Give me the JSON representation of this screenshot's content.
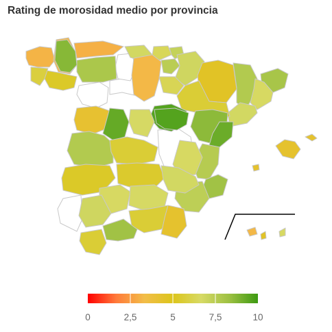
{
  "title": "Rating de morosidad medio por provincia",
  "legend": {
    "min": 0,
    "max": 10,
    "stops": [
      "#ff0000",
      "#ff7a3a",
      "#f2bd48",
      "#dcc51b",
      "#d7da65",
      "#9cc042",
      "#3d9a12"
    ],
    "ticks": [
      {
        "value": 0,
        "label": "0"
      },
      {
        "value": 2.5,
        "label": "2,5"
      },
      {
        "value": 5,
        "label": "5"
      },
      {
        "value": 7.5,
        "label": "7,5"
      },
      {
        "value": 10,
        "label": "10"
      }
    ]
  },
  "chart_data": {
    "type": "choropleth",
    "title": "Rating de morosidad medio por provincia",
    "color_range": [
      0,
      10
    ],
    "provinces": [
      {
        "id": "a-coruna",
        "rating": 3.1
      },
      {
        "id": "lugo",
        "rating": 3.2
      },
      {
        "id": "pontevedra",
        "rating": 5.3
      },
      {
        "id": "ourense",
        "rating": 5.8
      },
      {
        "id": "asturias",
        "rating": 8.7
      },
      {
        "id": "cantabria",
        "rating": 3.0
      },
      {
        "id": "bizkaia",
        "rating": 6.4
      },
      {
        "id": "gipuzkoa",
        "rating": 7.2
      },
      {
        "id": "alava",
        "rating": 7.5
      },
      {
        "id": "navarra",
        "rating": 6.9
      },
      {
        "id": "leon",
        "rating": 7.9
      },
      {
        "id": "palencia",
        "rating": 6.8
      },
      {
        "id": "burgos",
        "rating": 3.2
      },
      {
        "id": "la-rioja",
        "rating": 6.3
      },
      {
        "id": "huesca",
        "rating": 4.6
      },
      {
        "id": "zaragoza",
        "rating": 5.6
      },
      {
        "id": "teruel",
        "rating": 8.6
      },
      {
        "id": "lleida",
        "rating": 7.7
      },
      {
        "id": "barcelona",
        "rating": 6.6
      },
      {
        "id": "girona",
        "rating": 8.0
      },
      {
        "id": "tarragona",
        "rating": 6.8
      },
      {
        "id": "castellon",
        "rating": 9.2
      },
      {
        "id": "valencia",
        "rating": 7.6
      },
      {
        "id": "alicante",
        "rating": 8.2
      },
      {
        "id": "salamanca",
        "rating": 4.2
      },
      {
        "id": "avila",
        "rating": 9.3
      },
      {
        "id": "segovia",
        "rating": 6.7
      },
      {
        "id": "soria",
        "rating": 9.6
      },
      {
        "id": "guadalajara",
        "rating": 9.6
      },
      {
        "id": "caceres",
        "rating": 7.7
      },
      {
        "id": "toledo",
        "rating": 5.6
      },
      {
        "id": "cuenca",
        "rating": 6.6
      },
      {
        "id": "badajoz",
        "rating": 5.3
      },
      {
        "id": "ciudad-real",
        "rating": 5.4
      },
      {
        "id": "albacete",
        "rating": 6.8
      },
      {
        "id": "cordoba",
        "rating": 6.6
      },
      {
        "id": "jaen",
        "rating": 6.7
      },
      {
        "id": "granada",
        "rating": 5.6
      },
      {
        "id": "almeria",
        "rating": 4.3
      },
      {
        "id": "murcia",
        "rating": 7.4
      },
      {
        "id": "sevilla",
        "rating": 6.9
      },
      {
        "id": "cadiz",
        "rating": 5.6
      },
      {
        "id": "malaga",
        "rating": 8.2
      },
      {
        "id": "mallorca",
        "rating": 4.3
      },
      {
        "id": "menorca",
        "rating": 4.3
      },
      {
        "id": "ibiza",
        "rating": 4.3
      },
      {
        "id": "las-palmas",
        "rating": 4.6
      },
      {
        "id": "santa-cruz-de-tenerife",
        "rating": 3.2
      },
      {
        "id": "canarias-west",
        "rating": 6.6
      }
    ]
  }
}
